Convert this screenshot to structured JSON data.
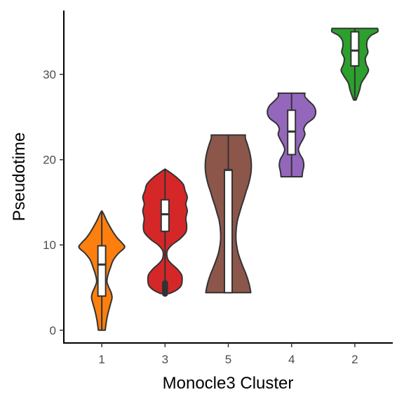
{
  "chart_data": {
    "type": "violin",
    "xlabel": "Monocle3 Cluster",
    "ylabel": "Pseudotime",
    "categories": [
      "1",
      "3",
      "5",
      "4",
      "2"
    ],
    "ylim": [
      -1.5,
      37.5
    ],
    "yticks": [
      0,
      10,
      20,
      30
    ],
    "grid": false,
    "legend": "none",
    "series": [
      {
        "category": "1",
        "color": "#FF7F0E",
        "min": 0.0,
        "q1": 4.0,
        "median": 7.7,
        "q3": 9.9,
        "max": 14.0,
        "outliers": [],
        "density": [
          [
            0.0,
            0.12
          ],
          [
            0.5,
            0.14
          ],
          [
            1.2,
            0.17
          ],
          [
            2.0,
            0.22
          ],
          [
            3.0,
            0.3
          ],
          [
            3.8,
            0.36
          ],
          [
            4.4,
            0.33
          ],
          [
            5.0,
            0.25
          ],
          [
            5.7,
            0.18
          ],
          [
            6.5,
            0.22
          ],
          [
            7.3,
            0.3
          ],
          [
            8.2,
            0.4
          ],
          [
            9.0,
            0.58
          ],
          [
            9.7,
            0.8
          ],
          [
            10.2,
            0.72
          ],
          [
            10.8,
            0.55
          ],
          [
            11.5,
            0.4
          ],
          [
            12.3,
            0.26
          ],
          [
            13.0,
            0.15
          ],
          [
            13.6,
            0.07
          ],
          [
            14.0,
            0.0
          ]
        ]
      },
      {
        "category": "3",
        "color": "#D62728",
        "min": 4.3,
        "q1": 11.6,
        "median": 13.6,
        "q3": 15.3,
        "max": 18.9,
        "outliers": [
          4.3,
          4.6,
          4.9,
          5.2,
          5.5
        ],
        "density": [
          [
            4.3,
            0.16
          ],
          [
            4.7,
            0.4
          ],
          [
            5.2,
            0.56
          ],
          [
            5.8,
            0.6
          ],
          [
            6.5,
            0.58
          ],
          [
            7.2,
            0.42
          ],
          [
            7.8,
            0.22
          ],
          [
            8.3,
            0.1
          ],
          [
            8.9,
            0.06
          ],
          [
            9.4,
            0.09
          ],
          [
            10.0,
            0.24
          ],
          [
            10.7,
            0.52
          ],
          [
            11.5,
            0.73
          ],
          [
            12.3,
            0.76
          ],
          [
            13.1,
            0.73
          ],
          [
            14.0,
            0.78
          ],
          [
            14.8,
            0.73
          ],
          [
            15.6,
            0.78
          ],
          [
            16.4,
            0.7
          ],
          [
            17.1,
            0.64
          ],
          [
            17.8,
            0.45
          ],
          [
            18.4,
            0.22
          ],
          [
            18.9,
            0.0
          ]
        ]
      },
      {
        "category": "5",
        "color": "#8C564B",
        "min": 4.4,
        "q1": 4.4,
        "median": 18.8,
        "q3": 18.8,
        "max": 22.9,
        "outliers": [],
        "density": [
          [
            4.4,
            0.79
          ],
          [
            5.0,
            0.76
          ],
          [
            5.8,
            0.7
          ],
          [
            6.6,
            0.62
          ],
          [
            7.4,
            0.52
          ],
          [
            8.2,
            0.43
          ],
          [
            9.0,
            0.35
          ],
          [
            9.8,
            0.3
          ],
          [
            10.6,
            0.27
          ],
          [
            11.4,
            0.27
          ],
          [
            12.2,
            0.29
          ],
          [
            13.0,
            0.33
          ],
          [
            13.8,
            0.4
          ],
          [
            14.6,
            0.47
          ],
          [
            15.4,
            0.55
          ],
          [
            16.2,
            0.62
          ],
          [
            17.0,
            0.7
          ],
          [
            17.8,
            0.76
          ],
          [
            18.6,
            0.8
          ],
          [
            19.4,
            0.81
          ],
          [
            20.2,
            0.79
          ],
          [
            21.0,
            0.74
          ],
          [
            21.8,
            0.67
          ],
          [
            22.5,
            0.6
          ],
          [
            22.9,
            0.6
          ]
        ]
      },
      {
        "category": "4",
        "color": "#9467BD",
        "min": 18.0,
        "q1": 20.6,
        "median": 23.3,
        "q3": 25.8,
        "max": 27.8,
        "outliers": [],
        "density": [
          [
            18.0,
            0.37
          ],
          [
            18.6,
            0.39
          ],
          [
            19.3,
            0.43
          ],
          [
            20.0,
            0.4
          ],
          [
            20.6,
            0.3
          ],
          [
            21.2,
            0.24
          ],
          [
            21.8,
            0.3
          ],
          [
            22.4,
            0.4
          ],
          [
            23.0,
            0.47
          ],
          [
            23.6,
            0.43
          ],
          [
            24.2,
            0.52
          ],
          [
            24.9,
            0.78
          ],
          [
            25.6,
            0.85
          ],
          [
            26.3,
            0.78
          ],
          [
            26.9,
            0.6
          ],
          [
            27.4,
            0.47
          ],
          [
            27.8,
            0.47
          ]
        ]
      },
      {
        "category": "2",
        "color": "#2CA02C",
        "min": 27.0,
        "q1": 31.0,
        "median": 32.8,
        "q3": 35.0,
        "max": 35.4,
        "outliers": [],
        "density": [
          [
            27.0,
            0.04
          ],
          [
            27.5,
            0.1
          ],
          [
            28.2,
            0.17
          ],
          [
            29.0,
            0.23
          ],
          [
            29.8,
            0.38
          ],
          [
            30.5,
            0.48
          ],
          [
            31.2,
            0.4
          ],
          [
            31.9,
            0.37
          ],
          [
            32.6,
            0.46
          ],
          [
            33.3,
            0.42
          ],
          [
            34.0,
            0.44
          ],
          [
            34.6,
            0.58
          ],
          [
            35.0,
            0.8
          ],
          [
            35.4,
            0.8
          ]
        ]
      }
    ]
  }
}
